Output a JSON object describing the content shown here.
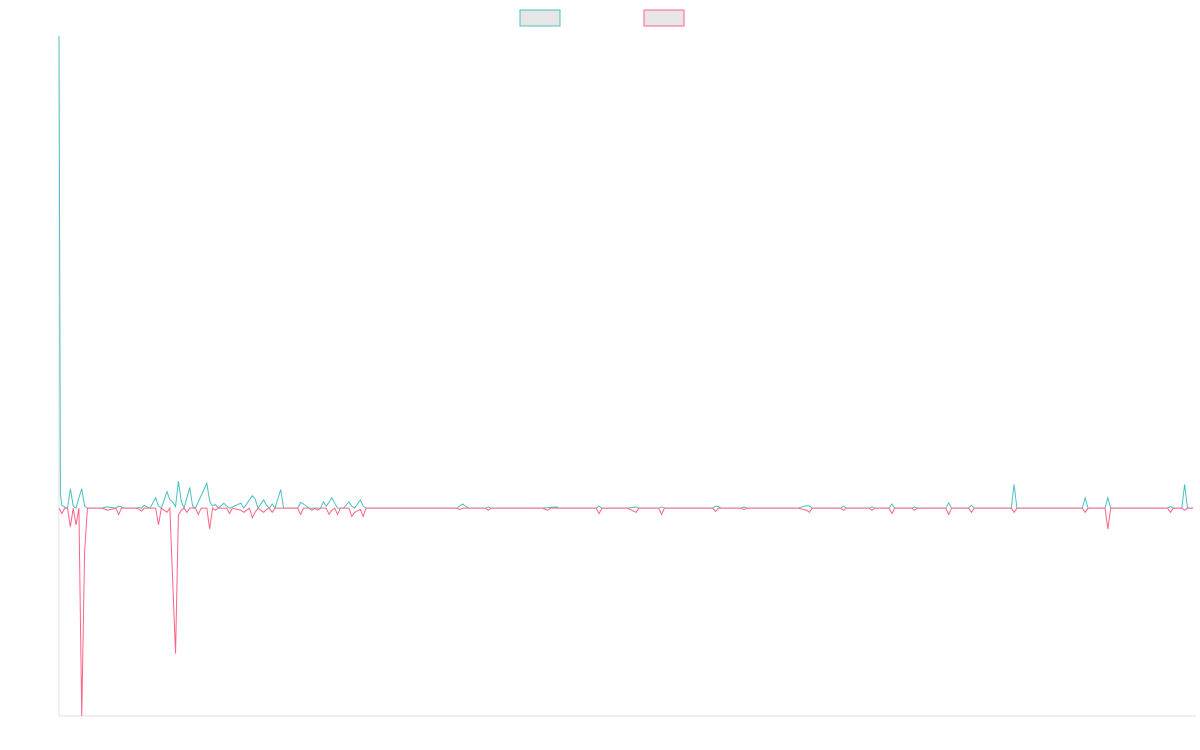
{
  "chart_data": {
    "type": "line",
    "title": "",
    "xlabel": "",
    "ylabel": "",
    "grid": false,
    "legend_position": "top-center",
    "ylim": [
      -500,
      1136
    ],
    "series": [
      {
        "name": "",
        "color": "#4bc0c0",
        "fill": "#e6e6e6",
        "points": [
          [
            0,
            1136
          ],
          [
            0.5,
            35
          ],
          [
            1,
            7
          ],
          [
            2,
            3
          ],
          [
            3,
            0
          ],
          [
            4,
            47
          ],
          [
            5,
            5
          ],
          [
            6,
            0
          ],
          [
            7,
            25
          ],
          [
            8,
            47
          ],
          [
            9,
            5
          ],
          [
            10,
            0
          ],
          [
            15,
            0
          ],
          [
            16,
            2
          ],
          [
            17,
            3
          ],
          [
            20,
            0
          ],
          [
            21,
            5
          ],
          [
            22,
            3
          ],
          [
            23,
            0
          ],
          [
            27,
            0
          ],
          [
            28,
            2
          ],
          [
            29,
            0
          ],
          [
            30,
            7
          ],
          [
            31,
            3
          ],
          [
            32,
            0
          ],
          [
            34,
            25
          ],
          [
            35,
            5
          ],
          [
            36,
            0
          ],
          [
            38,
            40
          ],
          [
            39,
            20
          ],
          [
            40,
            15
          ],
          [
            41,
            4
          ],
          [
            42,
            65
          ],
          [
            43,
            17
          ],
          [
            44,
            0
          ],
          [
            46,
            50
          ],
          [
            47,
            5
          ],
          [
            48,
            0
          ],
          [
            52,
            60
          ],
          [
            53,
            17
          ],
          [
            54,
            5
          ],
          [
            55,
            9
          ],
          [
            56,
            0
          ],
          [
            58,
            12
          ],
          [
            59,
            5
          ],
          [
            60,
            0
          ],
          [
            64,
            12
          ],
          [
            65,
            0
          ],
          [
            68,
            30
          ],
          [
            69,
            22
          ],
          [
            70,
            0
          ],
          [
            72,
            20
          ],
          [
            73,
            7
          ],
          [
            74,
            0
          ],
          [
            75,
            10
          ],
          [
            76,
            0
          ],
          [
            78,
            45
          ],
          [
            79,
            0
          ],
          [
            84,
            0
          ],
          [
            85,
            14
          ],
          [
            86,
            10
          ],
          [
            87,
            5
          ],
          [
            88,
            0
          ],
          [
            92,
            0
          ],
          [
            93,
            15
          ],
          [
            94,
            5
          ],
          [
            95,
            14
          ],
          [
            96,
            25
          ],
          [
            97,
            12
          ],
          [
            98,
            0
          ],
          [
            100,
            0
          ],
          [
            102,
            15
          ],
          [
            103,
            5
          ],
          [
            104,
            0
          ],
          [
            106,
            20
          ],
          [
            107,
            5
          ],
          [
            108,
            0
          ],
          [
            140,
            0
          ],
          [
            142,
            10
          ],
          [
            143,
            5
          ],
          [
            144,
            0
          ],
          [
            150,
            0
          ],
          [
            151,
            3
          ],
          [
            152,
            0
          ],
          [
            170,
            0
          ],
          [
            175,
            3
          ],
          [
            176,
            0
          ],
          [
            189,
            0
          ],
          [
            190,
            5
          ],
          [
            191,
            0
          ],
          [
            200,
            0
          ],
          [
            203,
            3
          ],
          [
            204,
            0
          ],
          [
            211,
            0
          ],
          [
            212,
            3
          ],
          [
            213,
            0
          ],
          [
            230,
            0
          ],
          [
            231,
            5
          ],
          [
            232,
            4
          ],
          [
            233,
            0
          ],
          [
            240,
            0
          ],
          [
            241,
            3
          ],
          [
            242,
            0
          ],
          [
            260,
            0
          ],
          [
            263,
            6
          ],
          [
            264,
            5
          ],
          [
            265,
            0
          ],
          [
            275,
            0
          ],
          [
            276,
            5
          ],
          [
            277,
            0
          ],
          [
            285,
            0
          ],
          [
            286,
            3
          ],
          [
            287,
            0
          ],
          [
            292,
            0
          ],
          [
            293,
            10
          ],
          [
            294,
            0
          ],
          [
            300,
            0
          ],
          [
            301,
            3
          ],
          [
            302,
            0
          ],
          [
            312,
            0
          ],
          [
            313,
            13
          ],
          [
            314,
            0
          ],
          [
            320,
            0
          ],
          [
            321,
            7
          ],
          [
            322,
            0
          ],
          [
            335,
            0
          ],
          [
            336,
            57
          ],
          [
            337,
            0
          ],
          [
            360,
            0
          ],
          [
            361,
            25
          ],
          [
            362,
            0
          ],
          [
            368,
            0
          ],
          [
            369,
            25
          ],
          [
            370,
            0
          ],
          [
            390,
            0
          ],
          [
            391,
            4
          ],
          [
            392,
            0
          ],
          [
            395,
            0
          ],
          [
            396,
            57
          ],
          [
            397,
            0
          ],
          [
            399,
            0
          ]
        ]
      },
      {
        "name": "",
        "color": "#ff6384",
        "fill": "#e6e6e6",
        "points": [
          [
            0,
            0
          ],
          [
            1,
            -13
          ],
          [
            2,
            0
          ],
          [
            3,
            0
          ],
          [
            4,
            -45
          ],
          [
            5,
            0
          ],
          [
            6,
            -40
          ],
          [
            7,
            0
          ],
          [
            8,
            -500
          ],
          [
            9,
            -107
          ],
          [
            10,
            0
          ],
          [
            15,
            0
          ],
          [
            16,
            -2
          ],
          [
            17,
            -5
          ],
          [
            20,
            0
          ],
          [
            21,
            -15
          ],
          [
            22,
            0
          ],
          [
            24,
            0
          ],
          [
            27,
            0
          ],
          [
            28,
            -2
          ],
          [
            29,
            -7
          ],
          [
            30,
            0
          ],
          [
            32,
            0
          ],
          [
            34,
            0
          ],
          [
            35,
            -40
          ],
          [
            36,
            0
          ],
          [
            38,
            -10
          ],
          [
            39,
            0
          ],
          [
            41,
            -350
          ],
          [
            42,
            -17
          ],
          [
            43,
            -5
          ],
          [
            44,
            0
          ],
          [
            45,
            -10
          ],
          [
            46,
            0
          ],
          [
            48,
            0
          ],
          [
            49,
            -15
          ],
          [
            50,
            0
          ],
          [
            52,
            0
          ],
          [
            53,
            -50
          ],
          [
            54,
            0
          ],
          [
            55,
            -5
          ],
          [
            56,
            0
          ],
          [
            59,
            0
          ],
          [
            60,
            -13
          ],
          [
            61,
            0
          ],
          [
            64,
            -5
          ],
          [
            65,
            -10
          ],
          [
            67,
            0
          ],
          [
            68,
            -23
          ],
          [
            69,
            -10
          ],
          [
            70,
            0
          ],
          [
            72,
            -10
          ],
          [
            73,
            -3
          ],
          [
            74,
            0
          ],
          [
            75,
            -10
          ],
          [
            76,
            0
          ],
          [
            84,
            0
          ],
          [
            85,
            -15
          ],
          [
            86,
            0
          ],
          [
            88,
            0
          ],
          [
            89,
            -5
          ],
          [
            90,
            0
          ],
          [
            91,
            -5
          ],
          [
            92,
            0
          ],
          [
            94,
            0
          ],
          [
            95,
            -15
          ],
          [
            96,
            -5
          ],
          [
            97,
            0
          ],
          [
            98,
            -15
          ],
          [
            99,
            0
          ],
          [
            100,
            0
          ],
          [
            102,
            0
          ],
          [
            103,
            -20
          ],
          [
            104,
            -10
          ],
          [
            106,
            -3
          ],
          [
            107,
            -20
          ],
          [
            108,
            0
          ],
          [
            140,
            0
          ],
          [
            141,
            -3
          ],
          [
            142,
            0
          ],
          [
            150,
            0
          ],
          [
            151,
            -5
          ],
          [
            152,
            0
          ],
          [
            170,
            0
          ],
          [
            172,
            -5
          ],
          [
            173,
            0
          ],
          [
            189,
            0
          ],
          [
            190,
            -13
          ],
          [
            191,
            0
          ],
          [
            200,
            0
          ],
          [
            203,
            -10
          ],
          [
            204,
            0
          ],
          [
            211,
            0
          ],
          [
            212,
            -15
          ],
          [
            213,
            0
          ],
          [
            230,
            0
          ],
          [
            231,
            -8
          ],
          [
            232,
            0
          ],
          [
            240,
            0
          ],
          [
            241,
            -3
          ],
          [
            242,
            0
          ],
          [
            260,
            0
          ],
          [
            263,
            -5
          ],
          [
            264,
            -10
          ],
          [
            265,
            0
          ],
          [
            275,
            0
          ],
          [
            276,
            -5
          ],
          [
            277,
            0
          ],
          [
            285,
            0
          ],
          [
            286,
            -5
          ],
          [
            287,
            0
          ],
          [
            292,
            0
          ],
          [
            293,
            -13
          ],
          [
            294,
            0
          ],
          [
            300,
            0
          ],
          [
            301,
            -5
          ],
          [
            302,
            0
          ],
          [
            312,
            0
          ],
          [
            313,
            -15
          ],
          [
            314,
            0
          ],
          [
            320,
            0
          ],
          [
            321,
            -10
          ],
          [
            322,
            0
          ],
          [
            335,
            0
          ],
          [
            336,
            -10
          ],
          [
            337,
            0
          ],
          [
            360,
            0
          ],
          [
            361,
            -10
          ],
          [
            362,
            0
          ],
          [
            368,
            0
          ],
          [
            369,
            -50
          ],
          [
            370,
            0
          ],
          [
            390,
            0
          ],
          [
            391,
            -10
          ],
          [
            392,
            0
          ],
          [
            395,
            0
          ],
          [
            396,
            -5
          ],
          [
            397,
            0
          ],
          [
            399,
            0
          ]
        ]
      }
    ],
    "xlim": [
      0,
      400
    ]
  }
}
